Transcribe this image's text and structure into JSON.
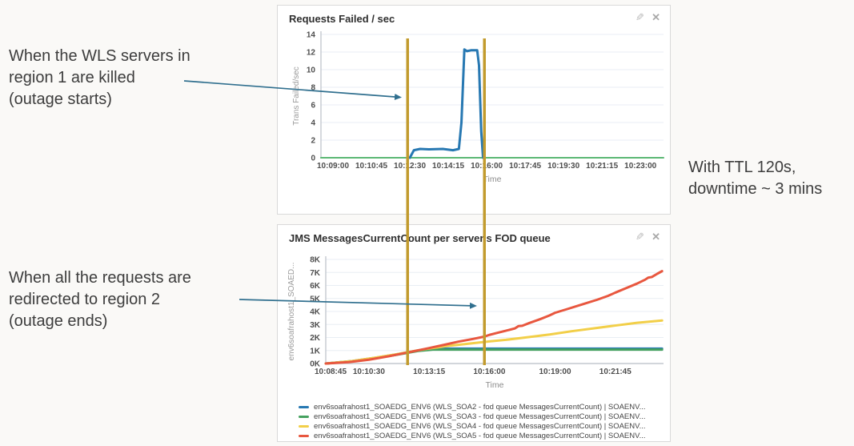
{
  "icons": {
    "edit": "✎",
    "close": "✕"
  },
  "annotations": {
    "arrow_color": "#31708f",
    "left_top": {
      "lines": [
        "When the WLS servers in",
        "region 1 are killed",
        "(outage starts)"
      ]
    },
    "left_bottom": {
      "lines": [
        "When all the requests are",
        "redirected to region 2",
        "(outage ends)"
      ]
    },
    "right": {
      "lines": [
        "With TTL 120s,",
        "downtime ~ 3 mins"
      ]
    }
  },
  "overlay": {
    "outage_markers": {
      "color": "#c29b2e",
      "times": [
        "10:12:30",
        "10:16:00"
      ]
    }
  },
  "chart_data": [
    {
      "type": "line",
      "title": "Requests Failed / sec",
      "xlabel": "Time",
      "ylabel": "Trans Failed/sec",
      "ylim": [
        0,
        14
      ],
      "yticks": [
        {
          "v": 0,
          "label": "0"
        },
        {
          "v": 2,
          "label": "2"
        },
        {
          "v": 4,
          "label": "4"
        },
        {
          "v": 6,
          "label": "6"
        },
        {
          "v": 8,
          "label": "8"
        },
        {
          "v": 10,
          "label": "10"
        },
        {
          "v": 12,
          "label": "12"
        },
        {
          "v": 14,
          "label": "14"
        }
      ],
      "xticks": [
        {
          "t": 0,
          "label": "10:09:00"
        },
        {
          "t": 105,
          "label": "10:10:45"
        },
        {
          "t": 210,
          "label": "10:12:30"
        },
        {
          "t": 315,
          "label": "10:14:15"
        },
        {
          "t": 420,
          "label": "10:16:00"
        },
        {
          "t": 525,
          "label": "10:17:45"
        },
        {
          "t": 630,
          "label": "10:19:30"
        },
        {
          "t": 735,
          "label": "10:21:15"
        },
        {
          "t": 840,
          "label": "10:23:00"
        }
      ],
      "xlim": [
        -33,
        903
      ],
      "grid": true,
      "series": [
        {
          "name": "zero-baseline",
          "color": "#5cb874",
          "width": 2,
          "points": [
            [
              -33,
              0
            ],
            [
              903,
              0
            ]
          ]
        },
        {
          "name": "requests-failed-per-sec",
          "color": "#2778b2",
          "width": 3,
          "points": [
            [
              210,
              0
            ],
            [
              221,
              0.85
            ],
            [
              238,
              1.0
            ],
            [
              262,
              0.95
            ],
            [
              300,
              1.0
            ],
            [
              328,
              0.85
            ],
            [
              344,
              1.0
            ],
            [
              351,
              4.0
            ],
            [
              359,
              12.3
            ],
            [
              366,
              12.1
            ],
            [
              377,
              12.2
            ],
            [
              394,
              12.2
            ],
            [
              399,
              10.5
            ],
            [
              405,
              3.0
            ],
            [
              410,
              0
            ]
          ]
        }
      ]
    },
    {
      "type": "line",
      "title": "JMS MessagesCurrentCount per server's FOD queue",
      "xlabel": "Time",
      "ylabel": "env6soafrahost1_SOAED...",
      "ylim": [
        0,
        8000
      ],
      "yticks": [
        {
          "v": 0,
          "label": "0K"
        },
        {
          "v": 1000,
          "label": "1K"
        },
        {
          "v": 2000,
          "label": "2K"
        },
        {
          "v": 3000,
          "label": "3K"
        },
        {
          "v": 4000,
          "label": "4K"
        },
        {
          "v": 5000,
          "label": "5K"
        },
        {
          "v": 6000,
          "label": "6K"
        },
        {
          "v": 7000,
          "label": "7K"
        },
        {
          "v": 8000,
          "label": "8K"
        }
      ],
      "xticks": [
        {
          "t": 0,
          "label": "10:08:45"
        },
        {
          "t": 105,
          "label": "10:10:30"
        },
        {
          "t": 270,
          "label": "10:13:15"
        },
        {
          "t": 435,
          "label": "10:16:00"
        },
        {
          "t": 615,
          "label": "10:19:00"
        },
        {
          "t": 780,
          "label": "10:21:45"
        }
      ],
      "xlim": [
        -13,
        912
      ],
      "grid": true,
      "series": [
        {
          "name": "wls-soa2-blue",
          "color": "#2778b2",
          "width": 3,
          "points": [
            [
              -13,
              0
            ],
            [
              60,
              190
            ],
            [
              120,
              430
            ],
            [
              180,
              700
            ],
            [
              240,
              1010
            ],
            [
              278,
              1150
            ],
            [
              908,
              1150
            ]
          ]
        },
        {
          "name": "wls-soa3-green",
          "color": "#45a15f",
          "width": 3,
          "points": [
            [
              -13,
              0
            ],
            [
              60,
              175
            ],
            [
              120,
              405
            ],
            [
              180,
              665
            ],
            [
              240,
              970
            ],
            [
              280,
              1070
            ],
            [
              908,
              1070
            ]
          ]
        },
        {
          "name": "wls-soa4-yellow",
          "color": "#f2cf49",
          "width": 3,
          "points": [
            [
              -13,
              0
            ],
            [
              60,
              195
            ],
            [
              120,
              440
            ],
            [
              180,
              710
            ],
            [
              240,
              1020
            ],
            [
              270,
              1150
            ],
            [
              330,
              1380
            ],
            [
              390,
              1560
            ],
            [
              435,
              1700
            ],
            [
              480,
              1820
            ],
            [
              540,
              2020
            ],
            [
              600,
              2230
            ],
            [
              660,
              2480
            ],
            [
              720,
              2700
            ],
            [
              780,
              2920
            ],
            [
              840,
              3130
            ],
            [
              908,
              3310
            ]
          ]
        },
        {
          "name": "wls-soa5-red",
          "color": "#e8573f",
          "width": 3,
          "points": [
            [
              -13,
              0
            ],
            [
              50,
              110
            ],
            [
              105,
              290
            ],
            [
              160,
              560
            ],
            [
              215,
              870
            ],
            [
              270,
              1190
            ],
            [
              310,
              1430
            ],
            [
              350,
              1680
            ],
            [
              390,
              1890
            ],
            [
              420,
              2060
            ],
            [
              435,
              2200
            ],
            [
              460,
              2380
            ],
            [
              480,
              2520
            ],
            [
              505,
              2700
            ],
            [
              515,
              2880
            ],
            [
              525,
              2900
            ],
            [
              545,
              3120
            ],
            [
              575,
              3420
            ],
            [
              600,
              3700
            ],
            [
              615,
              3900
            ],
            [
              650,
              4200
            ],
            [
              690,
              4550
            ],
            [
              730,
              4900
            ],
            [
              760,
              5200
            ],
            [
              780,
              5450
            ],
            [
              810,
              5800
            ],
            [
              840,
              6150
            ],
            [
              862,
              6450
            ],
            [
              870,
              6600
            ],
            [
              880,
              6650
            ],
            [
              895,
              6900
            ],
            [
              908,
              7100
            ]
          ]
        }
      ],
      "legend": [
        {
          "color": "#2778b2",
          "label": "env6soafrahost1_SOAEDG_ENV6 (WLS_SOA2 - fod queue MessagesCurrentCount) | SOAENV..."
        },
        {
          "color": "#45a15f",
          "label": "env6soafrahost1_SOAEDG_ENV6 (WLS_SOA3 - fod queue MessagesCurrentCount) | SOAENV..."
        },
        {
          "color": "#f2cf49",
          "label": "env6soafrahost1_SOAEDG_ENV6 (WLS_SOA4 - fod queue MessagesCurrentCount) | SOAENV..."
        },
        {
          "color": "#e8573f",
          "label": "env6soafrahost1_SOAEDG_ENV6 (WLS_SOA5 - fod queue MessagesCurrentCount) | SOAENV..."
        }
      ]
    }
  ]
}
